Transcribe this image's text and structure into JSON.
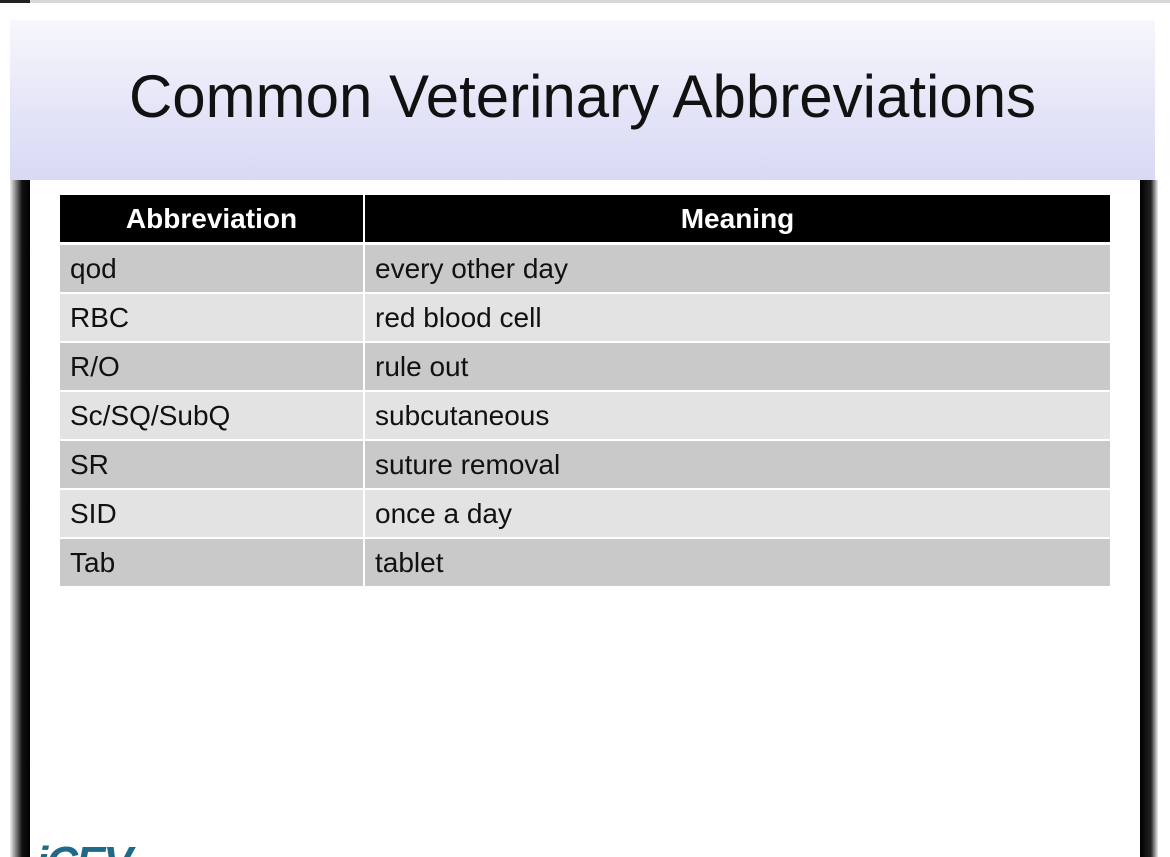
{
  "slide": {
    "title": "Common Veterinary Abbreviations",
    "table": {
      "header": [
        "Abbreviation",
        "Meaning"
      ],
      "rows": [
        [
          "qod",
          "every other day"
        ],
        [
          "RBC",
          "red blood cell"
        ],
        [
          "R/O",
          "rule out"
        ],
        [
          "Sc/SQ/SubQ",
          "subcutaneous"
        ],
        [
          "SR",
          "suture removal"
        ],
        [
          "SID",
          "once a day"
        ],
        [
          "Tab",
          "tablet"
        ]
      ]
    },
    "logo": "iCEV"
  }
}
